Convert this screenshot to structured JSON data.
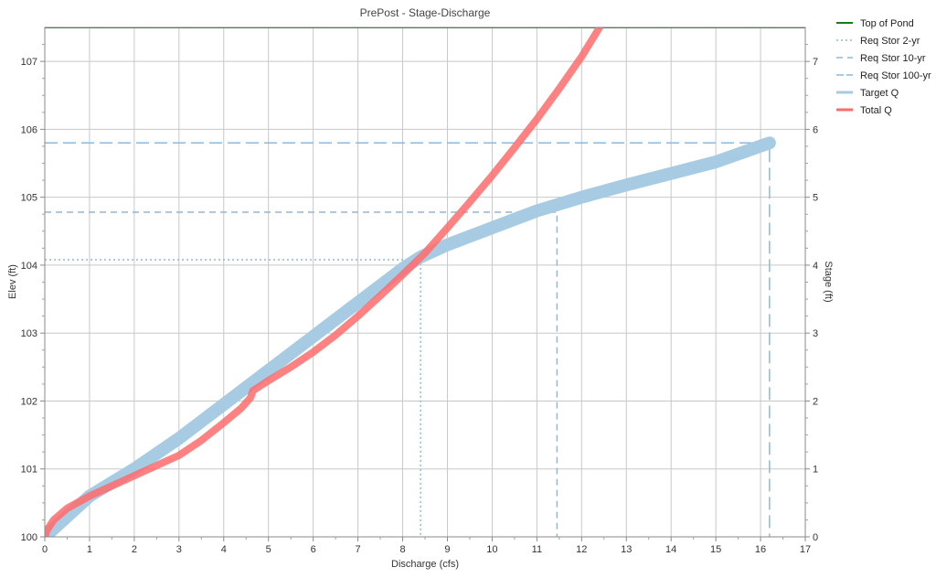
{
  "chart_data": {
    "type": "line",
    "title": "PrePost - Stage-Discharge",
    "xlabel": "Discharge (cfs)",
    "ylabel": "Elev (ft)",
    "y2label": "Stage (ft)",
    "xlim": [
      0,
      17
    ],
    "ylim": [
      100,
      107.5
    ],
    "y2lim": [
      0,
      7.5
    ],
    "xticks": [
      "0",
      "1",
      "2",
      "3",
      "4",
      "5",
      "6",
      "7",
      "8",
      "9",
      "10",
      "11",
      "12",
      "13",
      "14",
      "15",
      "16",
      "17"
    ],
    "yticks": [
      "100",
      "101",
      "102",
      "103",
      "104",
      "105",
      "106",
      "107"
    ],
    "y2ticks": [
      "0",
      "1",
      "2",
      "3",
      "4",
      "5",
      "6",
      "7"
    ],
    "grid": true,
    "legend_position": "right",
    "series": [
      {
        "name": "Top of Pond",
        "color": "#1a7a1a",
        "style": "solid",
        "width": 2,
        "x": [
          0,
          17
        ],
        "y": [
          107.5,
          107.5
        ]
      },
      {
        "name": "Req Stor 2-yr",
        "color": "#8db9dc",
        "style": "dotted",
        "width": 1.5,
        "x": [
          0,
          8.4,
          8.4
        ],
        "y": [
          104.08,
          104.08,
          100
        ]
      },
      {
        "name": "Req Stor 10-yr",
        "color": "#8db9dc",
        "style": "dashed",
        "width": 1.5,
        "x": [
          0,
          11.45,
          11.45
        ],
        "y": [
          104.78,
          104.78,
          100
        ]
      },
      {
        "name": "Req Stor 100-yr",
        "color": "#8db9dc",
        "style": "longdash",
        "width": 1.5,
        "x": [
          0,
          16.2,
          16.2
        ],
        "y": [
          105.8,
          105.8,
          100
        ]
      },
      {
        "name": "Target Q",
        "color": "#a6cbe3",
        "style": "solid",
        "width": 14,
        "x": [
          0,
          0.5,
          1,
          2,
          3,
          4,
          5,
          6,
          7,
          8,
          8.4,
          9,
          10,
          11,
          12,
          13,
          14,
          15,
          16.2
        ],
        "y": [
          100,
          100.3,
          100.6,
          101.0,
          101.45,
          101.95,
          102.45,
          102.95,
          103.45,
          103.95,
          104.12,
          104.3,
          104.55,
          104.8,
          105.0,
          105.18,
          105.35,
          105.52,
          105.8
        ]
      },
      {
        "name": "Total Q",
        "color": "#ff6b6b",
        "style": "solid",
        "width": 8,
        "x": [
          0,
          0.05,
          0.2,
          0.5,
          1,
          1.5,
          2,
          2.5,
          3,
          3.5,
          4,
          4.4,
          4.6,
          4.65,
          5,
          5.5,
          6,
          6.5,
          7,
          7.5,
          8,
          8.5,
          9,
          9.5,
          10,
          10.5,
          11,
          11.5,
          12,
          12.4
        ],
        "y": [
          100,
          100.1,
          100.25,
          100.42,
          100.6,
          100.75,
          100.9,
          101.05,
          101.2,
          101.42,
          101.68,
          101.9,
          102.05,
          102.15,
          102.3,
          102.5,
          102.72,
          102.97,
          103.25,
          103.55,
          103.86,
          104.18,
          104.55,
          104.93,
          105.32,
          105.73,
          106.15,
          106.6,
          107.07,
          107.5
        ]
      }
    ]
  }
}
